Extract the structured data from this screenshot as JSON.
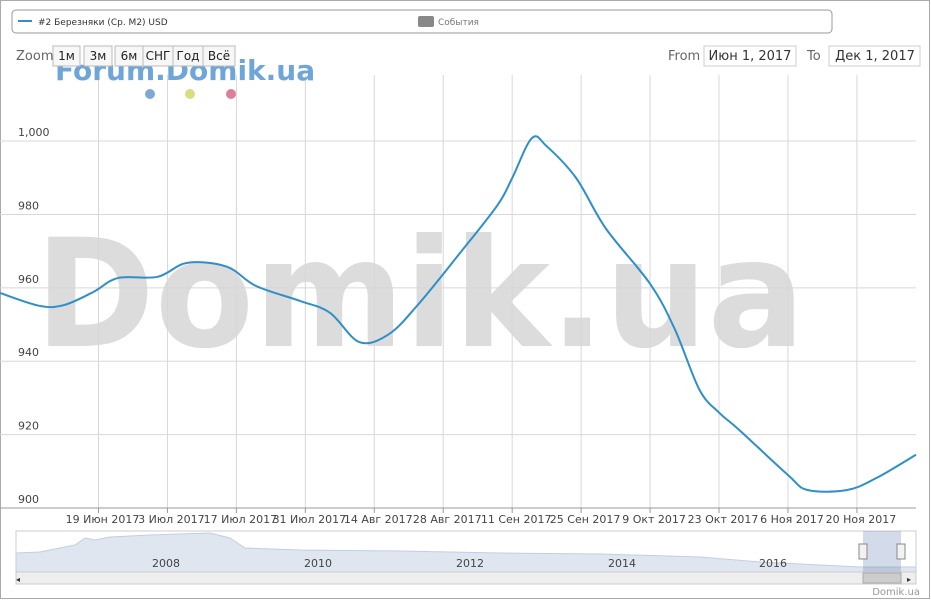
{
  "chart_data": {
    "type": "line",
    "series": [
      {
        "name": "#2 Березняки (Ср. М2) USD",
        "color": "#2f8fc8",
        "x": [
          "2017-05-30",
          "2017-06-07",
          "2017-06-12",
          "2017-06-18",
          "2017-06-23",
          "2017-07-01",
          "2017-07-07",
          "2017-07-15",
          "2017-07-21",
          "2017-07-30",
          "2017-08-05",
          "2017-08-11",
          "2017-08-17",
          "2017-08-23",
          "2017-08-31",
          "2017-09-08",
          "2017-09-11",
          "2017-09-15",
          "2017-09-18",
          "2017-09-24",
          "2017-09-30",
          "2017-10-09",
          "2017-10-14",
          "2017-10-19",
          "2017-10-23",
          "2017-10-27",
          "2017-11-06",
          "2017-11-10",
          "2017-11-18",
          "2017-11-24",
          "2017-12-02"
        ],
        "values": [
          958.6,
          955.1,
          955.3,
          958.9,
          962.7,
          963,
          966.8,
          965.8,
          960.5,
          956.4,
          953.2,
          945.2,
          947.4,
          955.6,
          968.8,
          982.5,
          989.9,
          1000.8,
          998.6,
          989.9,
          976.2,
          961.1,
          948.8,
          932.3,
          926,
          921.4,
          909,
          904.9,
          904.9,
          908.2,
          914.5
        ]
      }
    ],
    "xlim": [
      "2017-05-30",
      "2017-12-02"
    ],
    "xticks": [
      {
        "value": "2017-06-19",
        "label": "19 Июн 2017"
      },
      {
        "value": "2017-07-03",
        "label": "3 Июл 2017"
      },
      {
        "value": "2017-07-17",
        "label": "17 Июл 2017"
      },
      {
        "value": "2017-07-31",
        "label": "31 Июл 2017"
      },
      {
        "value": "2017-08-14",
        "label": "14 Авг 2017"
      },
      {
        "value": "2017-08-28",
        "label": "28 Авг 2017"
      },
      {
        "value": "2017-09-11",
        "label": "11 Сен 2017"
      },
      {
        "value": "2017-09-25",
        "label": "25 Сен 2017"
      },
      {
        "value": "2017-10-09",
        "label": "9 Окт 2017"
      },
      {
        "value": "2017-10-23",
        "label": "23 Окт 2017"
      },
      {
        "value": "2017-11-06",
        "label": "6 Ноя 2017"
      },
      {
        "value": "2017-11-20",
        "label": "20 Ноя 2017"
      }
    ],
    "ylim": [
      900,
      1018
    ],
    "yticks": [
      900,
      920,
      940,
      960,
      980,
      {
        "value": 1000,
        "label": "1,000"
      }
    ],
    "grid": true,
    "events_legend": "События"
  },
  "ui": {
    "zoom_label": "Zoom",
    "zoom_buttons": [
      "1м",
      "3м",
      "6м",
      "СНГ",
      "Год",
      "Всё"
    ],
    "from_label": "From",
    "from_value": "Июн 1, 2017",
    "to_label": "To",
    "to_value": "Дек 1, 2017",
    "watermark_small": "Forum.Domik.ua",
    "watermark_big": "Domik.ua",
    "credits": "Domik.ua",
    "navigator_years": [
      "2008",
      "2010",
      "2012",
      "2014",
      "2016"
    ]
  }
}
